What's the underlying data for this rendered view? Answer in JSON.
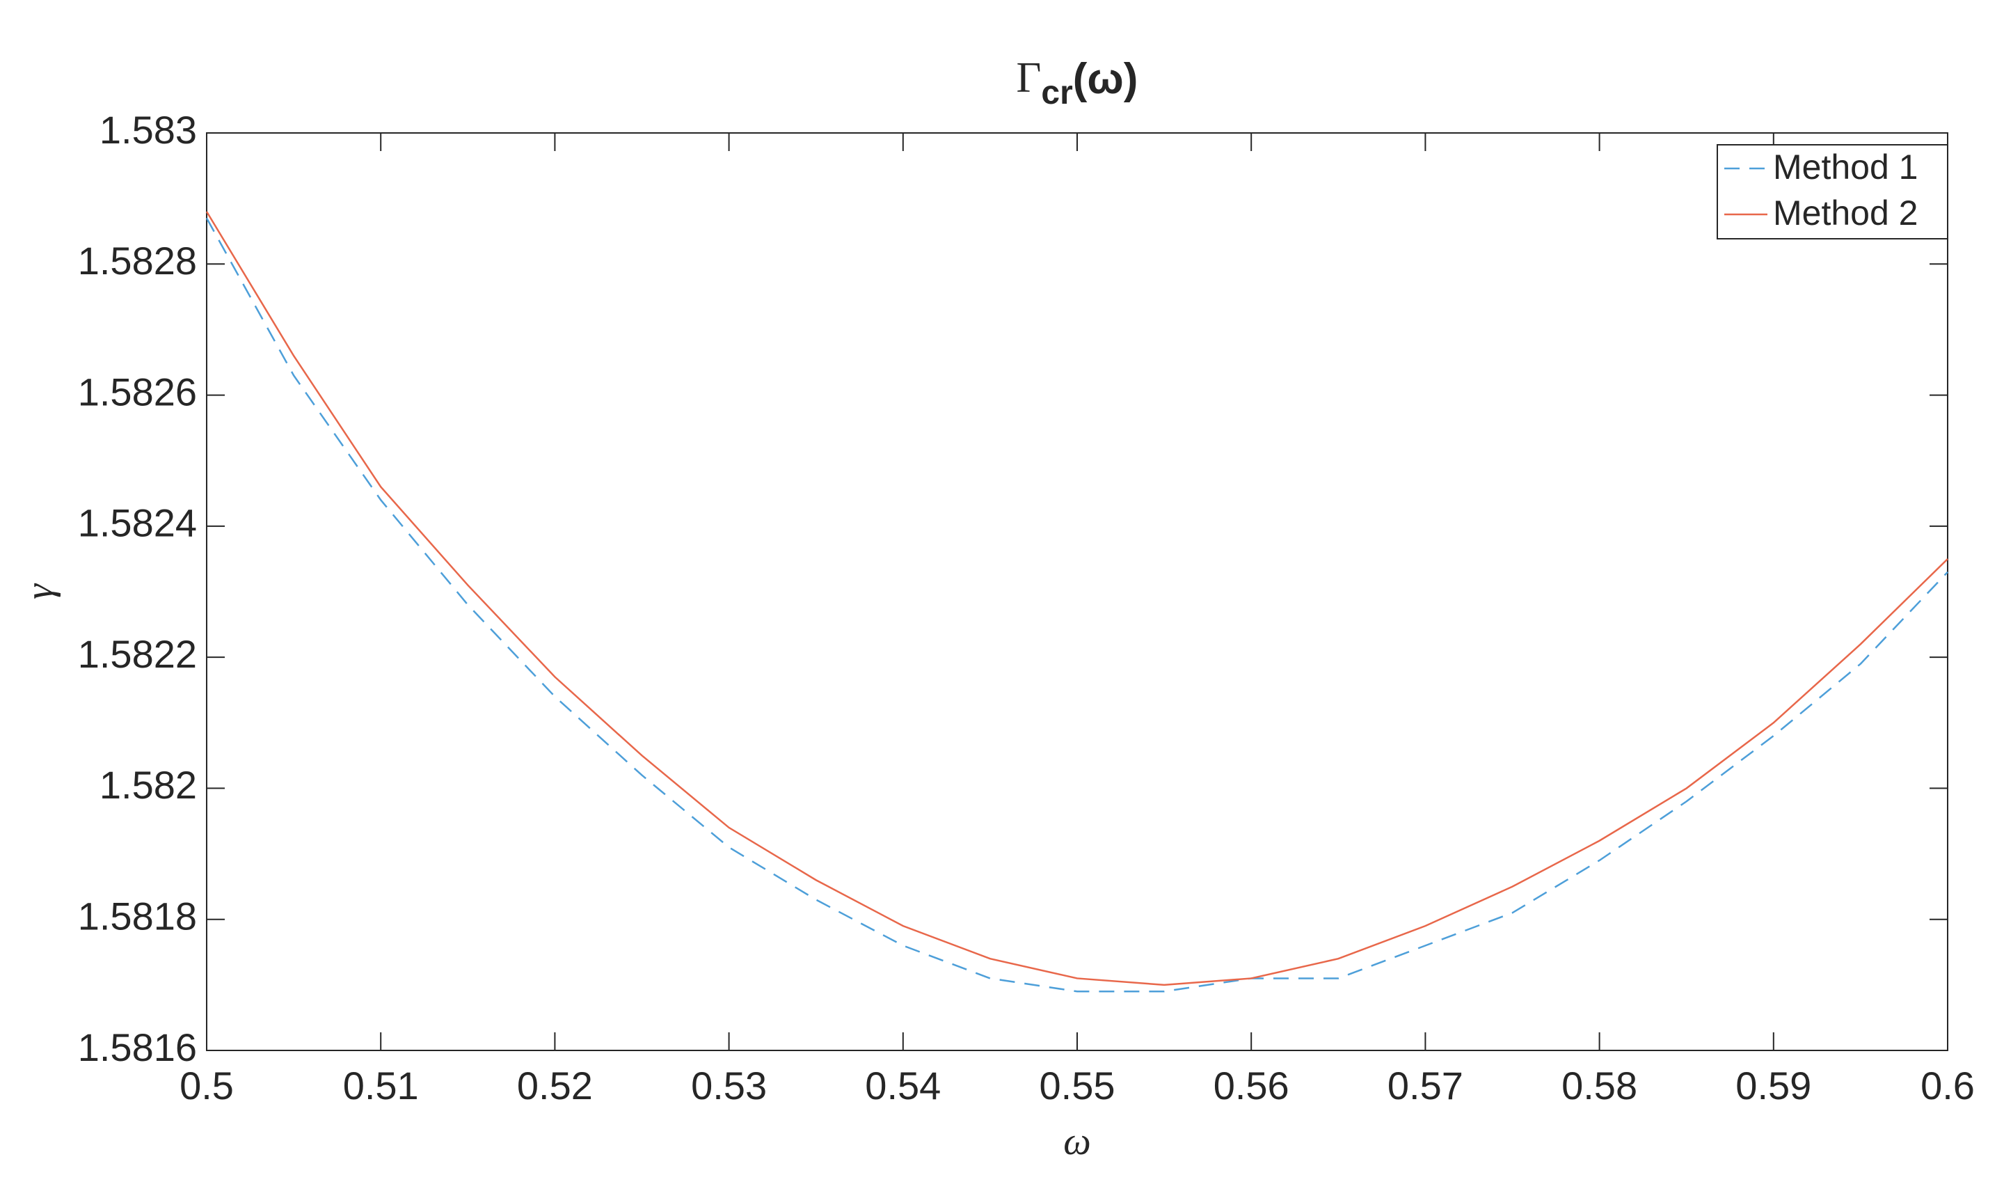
{
  "chart_data": {
    "type": "line",
    "title": [
      "Γ",
      "cr",
      "(ω)"
    ],
    "xlabel": "ω",
    "ylabel": "γ",
    "x": [
      0.5,
      0.505,
      0.51,
      0.515,
      0.52,
      0.525,
      0.53,
      0.535,
      0.54,
      0.545,
      0.55,
      0.555,
      0.56,
      0.565,
      0.57,
      0.575,
      0.58,
      0.585,
      0.59,
      0.595,
      0.6
    ],
    "series": [
      {
        "name": "Method 1",
        "color": "#4d9fd9",
        "dashed": true,
        "values": [
          1.58287,
          1.58263,
          1.58244,
          1.58228,
          1.58214,
          1.58202,
          1.58191,
          1.58183,
          1.58176,
          1.58171,
          1.58169,
          1.58169,
          1.58171,
          1.58171,
          1.58176,
          1.58181,
          1.58189,
          1.58198,
          1.58208,
          1.58219,
          1.58233
        ]
      },
      {
        "name": "Method 2",
        "color": "#e8674a",
        "dashed": false,
        "values": [
          1.58288,
          1.58266,
          1.58246,
          1.58231,
          1.58217,
          1.58205,
          1.58194,
          1.58186,
          1.58179,
          1.58174,
          1.58171,
          1.5817,
          1.58171,
          1.58174,
          1.58179,
          1.58185,
          1.58192,
          1.582,
          1.5821,
          1.58222,
          1.58235
        ]
      }
    ],
    "xlim": [
      0.5,
      0.6
    ],
    "xticks": [
      0.5,
      0.51,
      0.52,
      0.53,
      0.54,
      0.55,
      0.56,
      0.57,
      0.58,
      0.59,
      0.6
    ],
    "ylim": [
      1.5816,
      1.583
    ],
    "yticks": [
      1.5816,
      1.5818,
      1.582,
      1.5822,
      1.5824,
      1.5826,
      1.5828,
      1.583
    ],
    "grid": false,
    "legend": "northeast"
  }
}
